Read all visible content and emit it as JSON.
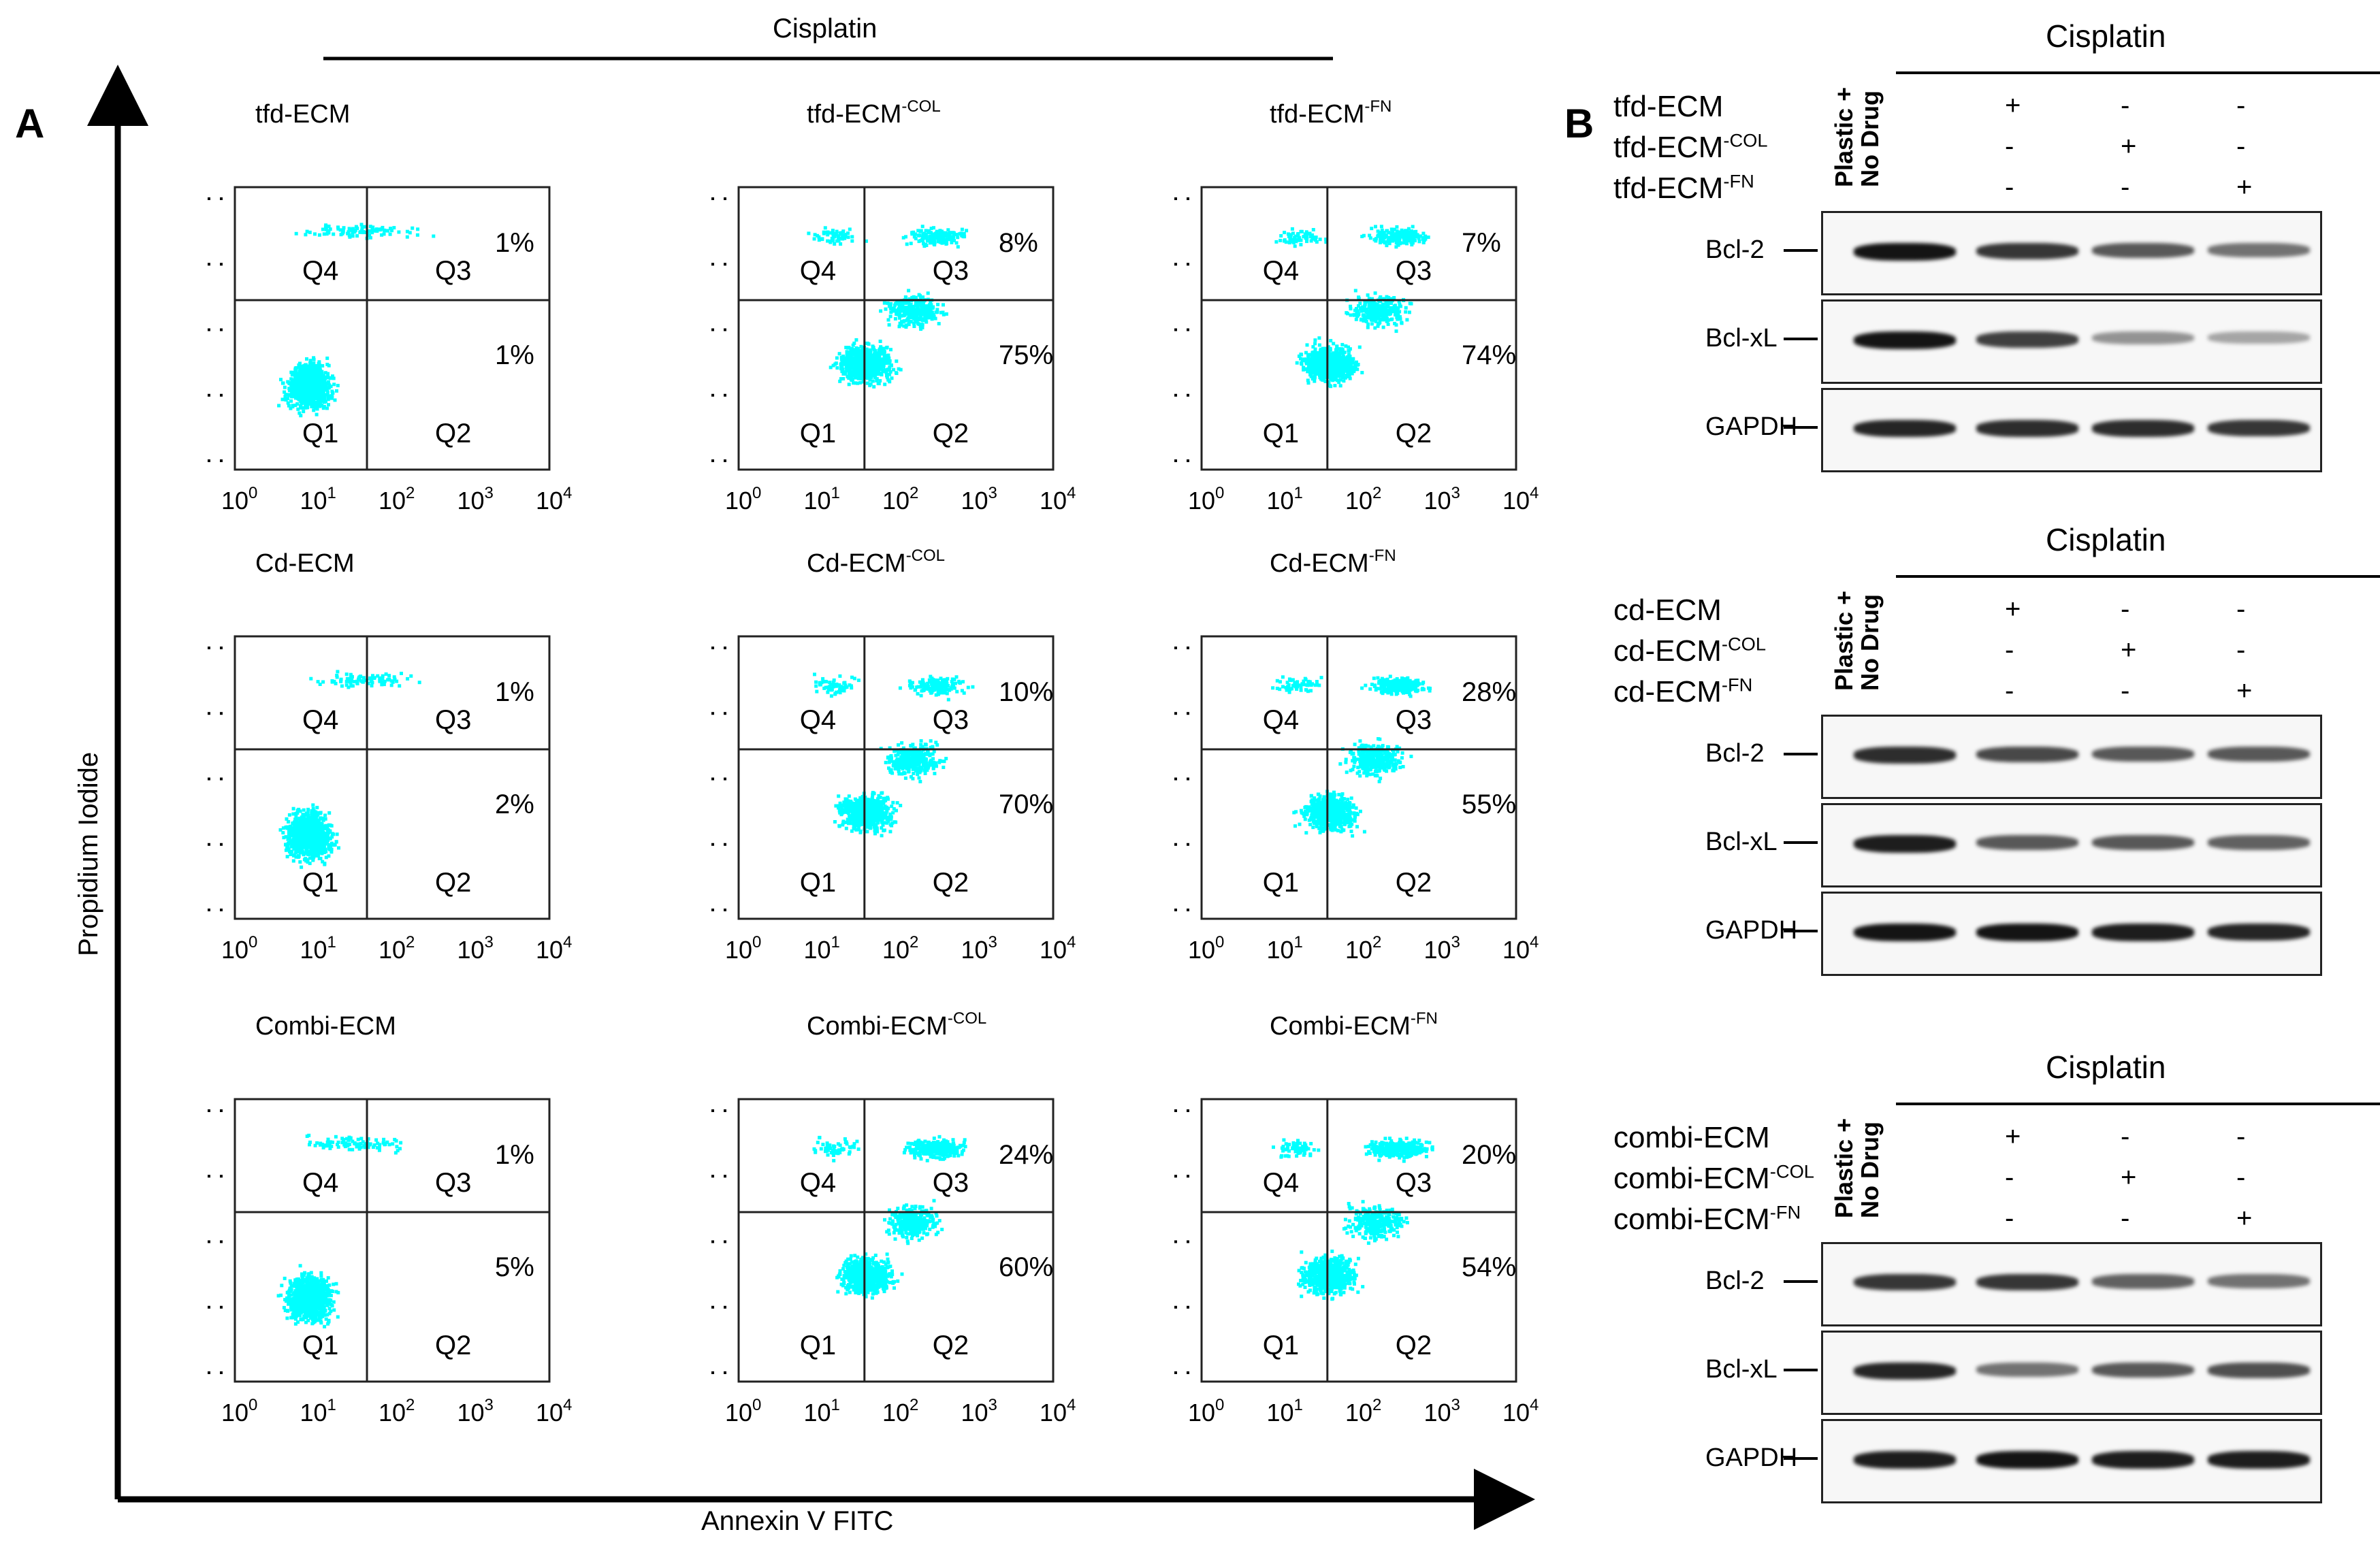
{
  "panel_a": {
    "letter": "A",
    "top_title": "Cisplatin",
    "y_axis_label": "Propidium Iodide",
    "x_axis_label": "Annexin V FITC",
    "quadrant_labels": [
      "Q4",
      "Q3",
      "Q1",
      "Q2"
    ],
    "tick_labels": [
      "10",
      "10",
      "10",
      "10",
      "10"
    ],
    "tick_exponents": [
      "0",
      "1",
      "2",
      "3",
      "4"
    ],
    "point_color": "#00FFFF",
    "plots": [
      {
        "name": "tfd-ECM",
        "sup": "",
        "q3_pct": "1%",
        "q2_pct": "1%"
      },
      {
        "name": "tfd-ECM",
        "sup": "-COL",
        "q3_pct": "8%",
        "q2_pct": "75%"
      },
      {
        "name": "tfd-ECM",
        "sup": "-FN",
        "q3_pct": "7%",
        "q2_pct": "74%"
      },
      {
        "name": "Cd-ECM",
        "sup": "",
        "q3_pct": "1%",
        "q2_pct": "2%"
      },
      {
        "name": "Cd-ECM",
        "sup": "-COL",
        "q3_pct": "10%",
        "q2_pct": "70%"
      },
      {
        "name": "Cd-ECM",
        "sup": "-FN",
        "q3_pct": "28%",
        "q2_pct": "55%"
      },
      {
        "name": "Combi-ECM",
        "sup": "",
        "q3_pct": "1%",
        "q2_pct": "5%"
      },
      {
        "name": "Combi-ECM",
        "sup": "-COL",
        "q3_pct": "24%",
        "q2_pct": "60%"
      },
      {
        "name": "Combi-ECM",
        "sup": "-FN",
        "q3_pct": "20%",
        "q2_pct": "54%"
      }
    ]
  },
  "panel_b": {
    "letter": "B",
    "control_lane_line1": "Plastic +",
    "control_lane_line2": "No Drug",
    "blots": [
      {
        "title": "Cisplatin",
        "conditions": [
          {
            "name": "tfd-ECM",
            "sup": "",
            "signs": [
              "+",
              "-",
              "-"
            ]
          },
          {
            "name": "tfd-ECM",
            "sup": "-COL",
            "signs": [
              "-",
              "+",
              "-"
            ]
          },
          {
            "name": "tfd-ECM",
            "sup": "-FN",
            "signs": [
              "-",
              "-",
              "+"
            ]
          }
        ],
        "proteins": [
          {
            "label": "Bcl-2",
            "intensities": [
              1.0,
              0.8,
              0.6,
              0.45
            ]
          },
          {
            "label": "Bcl-xL",
            "intensities": [
              1.0,
              0.75,
              0.25,
              0.15
            ]
          },
          {
            "label": "GAPDH",
            "intensities": [
              0.9,
              0.85,
              0.85,
              0.8
            ]
          }
        ]
      },
      {
        "title": "Cisplatin",
        "conditions": [
          {
            "name": "cd-ECM",
            "sup": "",
            "signs": [
              "+",
              "-",
              "-"
            ]
          },
          {
            "name": "cd-ECM",
            "sup": "-COL",
            "signs": [
              "-",
              "+",
              "-"
            ]
          },
          {
            "name": "cd-ECM",
            "sup": "-FN",
            "signs": [
              "-",
              "-",
              "+"
            ]
          }
        ],
        "proteins": [
          {
            "label": "Bcl-2",
            "intensities": [
              0.85,
              0.7,
              0.6,
              0.6
            ]
          },
          {
            "label": "Bcl-xL",
            "intensities": [
              0.95,
              0.6,
              0.6,
              0.55
            ]
          },
          {
            "label": "GAPDH",
            "intensities": [
              1.0,
              1.0,
              0.95,
              0.9
            ]
          }
        ]
      },
      {
        "title": "Cisplatin",
        "conditions": [
          {
            "name": "combi-ECM",
            "sup": "",
            "signs": [
              "+",
              "-",
              "-"
            ]
          },
          {
            "name": "combi-ECM",
            "sup": "-COL",
            "signs": [
              "-",
              "+",
              "-"
            ]
          },
          {
            "name": "combi-ECM",
            "sup": "-FN",
            "signs": [
              "-",
              "-",
              "+"
            ]
          }
        ],
        "proteins": [
          {
            "label": "Bcl-2",
            "intensities": [
              0.8,
              0.8,
              0.55,
              0.45
            ]
          },
          {
            "label": "Bcl-xL",
            "intensities": [
              0.9,
              0.45,
              0.6,
              0.65
            ]
          },
          {
            "label": "GAPDH",
            "intensities": [
              0.95,
              1.0,
              0.95,
              0.95
            ]
          }
        ]
      }
    ]
  }
}
